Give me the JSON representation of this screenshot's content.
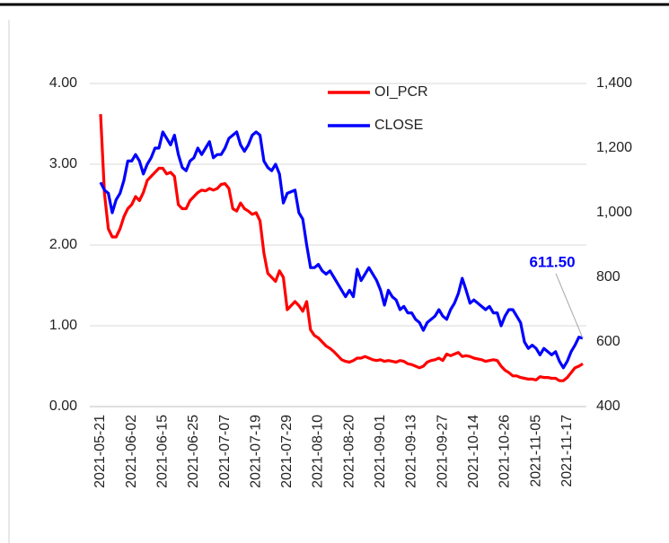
{
  "chart_data": {
    "type": "line",
    "categories": [
      "2021-05-21",
      null,
      null,
      null,
      null,
      null,
      null,
      null,
      "2021-06-02",
      null,
      null,
      null,
      null,
      null,
      null,
      null,
      "2021-06-15",
      null,
      null,
      null,
      null,
      null,
      null,
      null,
      "2021-06-25",
      null,
      null,
      null,
      null,
      null,
      null,
      null,
      "2021-07-07",
      null,
      null,
      null,
      null,
      null,
      null,
      null,
      "2021-07-19",
      null,
      null,
      null,
      null,
      null,
      null,
      null,
      "2021-07-29",
      null,
      null,
      null,
      null,
      null,
      null,
      null,
      "2021-08-10",
      null,
      null,
      null,
      null,
      null,
      null,
      null,
      "2021-08-20",
      null,
      null,
      null,
      null,
      null,
      null,
      null,
      "2021-09-01",
      null,
      null,
      null,
      null,
      null,
      null,
      null,
      "2021-09-13",
      null,
      null,
      null,
      null,
      null,
      null,
      null,
      "2021-09-27",
      null,
      null,
      null,
      null,
      null,
      null,
      null,
      "2021-10-14",
      null,
      null,
      null,
      null,
      null,
      null,
      null,
      "2021-10-26",
      null,
      null,
      null,
      null,
      null,
      null,
      null,
      "2021-11-05",
      null,
      null,
      null,
      null,
      null,
      null,
      null,
      "2021-11-17",
      null,
      null,
      null,
      null
    ],
    "series": [
      {
        "name": "OI_PCR",
        "color": "#ff0000",
        "values": [
          3.62,
          2.64,
          2.2,
          2.1,
          2.1,
          2.2,
          2.35,
          2.45,
          2.5,
          2.6,
          2.55,
          2.65,
          2.8,
          2.85,
          2.9,
          2.95,
          2.95,
          2.88,
          2.9,
          2.85,
          2.5,
          2.45,
          2.45,
          2.55,
          2.6,
          2.65,
          2.68,
          2.67,
          2.7,
          2.68,
          2.7,
          2.75,
          2.76,
          2.7,
          2.45,
          2.42,
          2.52,
          2.45,
          2.42,
          2.38,
          2.4,
          2.3,
          1.9,
          1.65,
          1.6,
          1.55,
          1.68,
          1.6,
          1.2,
          1.25,
          1.3,
          1.25,
          1.18,
          1.3,
          0.95,
          0.88,
          0.85,
          0.8,
          0.75,
          0.72,
          0.68,
          0.63,
          0.58,
          0.56,
          0.55,
          0.57,
          0.6,
          0.6,
          0.62,
          0.6,
          0.58,
          0.57,
          0.58,
          0.56,
          0.57,
          0.56,
          0.55,
          0.57,
          0.56,
          0.53,
          0.52,
          0.5,
          0.48,
          0.5,
          0.55,
          0.57,
          0.58,
          0.6,
          0.57,
          0.65,
          0.63,
          0.65,
          0.67,
          0.62,
          0.63,
          0.62,
          0.6,
          0.59,
          0.58,
          0.56,
          0.57,
          0.58,
          0.57,
          0.5,
          0.45,
          0.42,
          0.38,
          0.38,
          0.36,
          0.35,
          0.34,
          0.34,
          0.33,
          0.37,
          0.36,
          0.36,
          0.35,
          0.35,
          0.32,
          0.32,
          0.36,
          0.42,
          0.48,
          0.5,
          0.53
        ]
      },
      {
        "name": "CLOSE",
        "color": "#0000ff",
        "axis": "y2",
        "values": [
          1094,
          1070,
          1060,
          1000,
          1040,
          1060,
          1100,
          1160,
          1160,
          1180,
          1160,
          1120,
          1150,
          1170,
          1200,
          1200,
          1250,
          1230,
          1210,
          1240,
          1180,
          1140,
          1130,
          1160,
          1170,
          1200,
          1180,
          1200,
          1220,
          1170,
          1180,
          1180,
          1200,
          1230,
          1240,
          1250,
          1210,
          1190,
          1210,
          1240,
          1250,
          1240,
          1160,
          1140,
          1130,
          1150,
          1120,
          1030,
          1060,
          1065,
          1070,
          1000,
          980,
          900,
          830,
          830,
          840,
          820,
          810,
          820,
          800,
          780,
          760,
          740,
          760,
          740,
          825,
          790,
          810,
          830,
          810,
          790,
          760,
          714,
          760,
          740,
          730,
          700,
          710,
          690,
          690,
          670,
          660,
          636,
          660,
          670,
          680,
          700,
          680,
          670,
          700,
          720,
          750,
          797,
          760,
          720,
          730,
          720,
          710,
          700,
          710,
          690,
          690,
          650,
          680,
          700,
          700,
          680,
          660,
          600,
          580,
          590,
          580,
          560,
          580,
          570,
          560,
          570,
          540,
          520,
          540,
          570,
          590,
          615,
          611.5
        ],
        "value_labels": [
          null,
          null,
          null,
          null,
          null,
          null,
          null,
          null,
          null,
          null,
          null,
          null,
          null,
          null,
          null,
          null,
          null,
          null,
          null,
          null,
          null,
          null,
          null,
          null,
          null,
          null,
          null,
          null,
          null,
          null,
          null,
          null,
          null,
          null,
          null,
          null,
          null,
          null,
          null,
          null,
          null,
          null,
          null,
          null,
          null,
          null,
          null,
          null,
          null,
          null,
          null,
          null,
          null,
          null,
          null,
          null,
          null,
          null,
          null,
          null,
          null,
          null,
          null,
          null,
          null,
          null,
          null,
          null,
          null,
          null,
          null,
          null,
          null,
          null,
          null,
          null,
          null,
          null,
          null,
          null,
          null,
          null,
          null,
          null,
          null,
          null,
          null,
          null,
          null,
          null,
          null,
          null,
          null,
          null,
          null,
          null,
          null,
          null,
          null,
          null,
          null,
          null,
          null,
          null,
          null,
          null,
          null,
          null,
          null,
          null,
          null,
          null,
          null,
          null,
          null,
          null,
          null,
          null,
          null,
          null,
          null,
          null,
          null,
          null,
          "611.50"
        ]
      }
    ],
    "ylim": [
      0,
      4
    ],
    "yticks": [
      {
        "value": 0,
        "label": "0.00"
      },
      {
        "value": 1,
        "label": "1.00"
      },
      {
        "value": 2,
        "label": "2.00"
      },
      {
        "value": 3,
        "label": "3.00"
      },
      {
        "value": 4,
        "label": "4.00"
      }
    ],
    "y2lim": [
      400,
      1400
    ],
    "y2ticks": [
      400,
      600,
      800,
      {
        "value": 1000,
        "label": "1,000"
      },
      {
        "value": 1200,
        "label": "1,200"
      },
      {
        "value": 1400,
        "label": "1,400"
      }
    ],
    "grid": true,
    "legend": "top-center"
  }
}
